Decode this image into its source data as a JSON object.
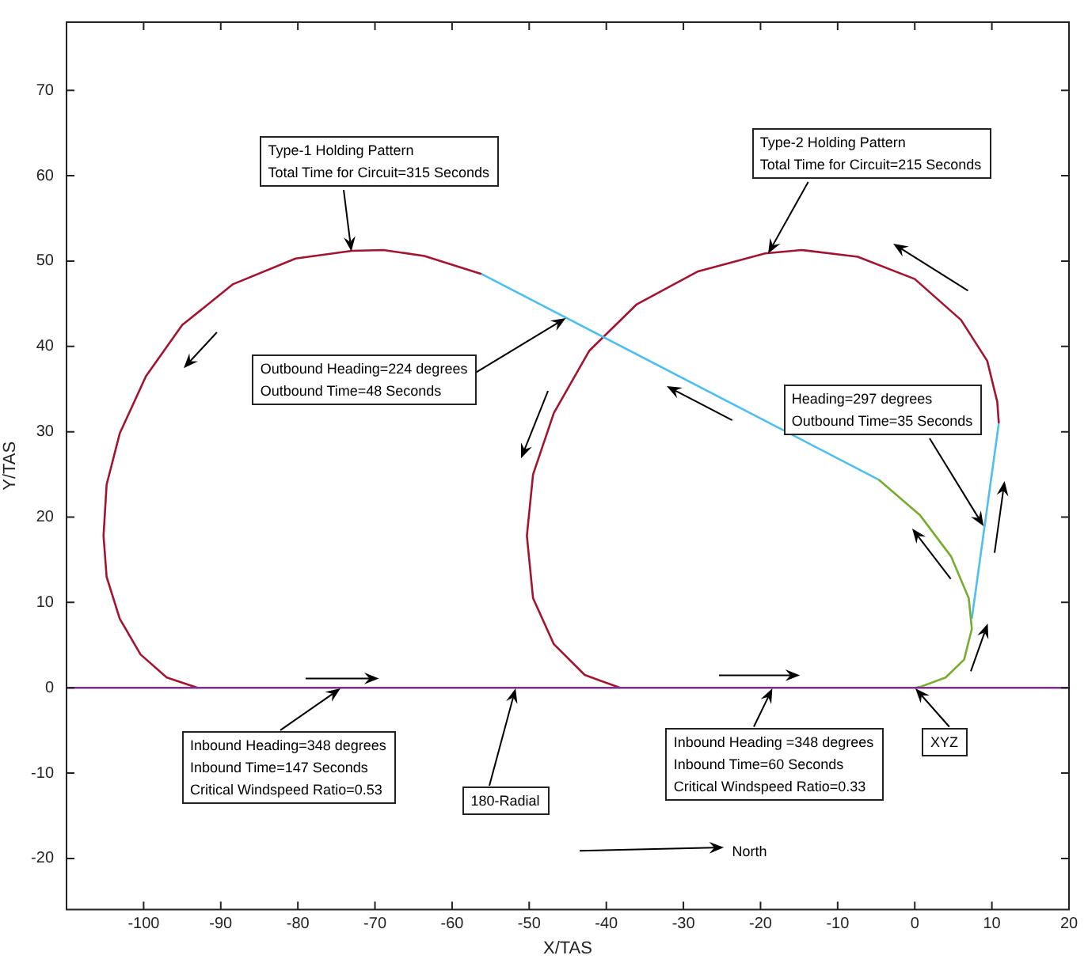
{
  "chart_data": {
    "type": "line",
    "xlabel": "X/TAS",
    "ylabel": "Y/TAS",
    "xlim": [
      -110,
      20
    ],
    "ylim": [
      -26,
      78
    ],
    "xticks": [
      -100,
      -90,
      -80,
      -70,
      -60,
      -50,
      -40,
      -30,
      -20,
      -10,
      0,
      10,
      20
    ],
    "yticks": [
      -20,
      -10,
      0,
      10,
      20,
      30,
      40,
      50,
      60,
      70
    ],
    "grid": false,
    "legend": false,
    "series": [
      {
        "color": "#7e2f8e",
        "x": [
          -110,
          20
        ],
        "values": [
          0,
          0
        ]
      },
      {
        "color": "#a2142f",
        "x": [
          -93,
          -97,
          -100.4,
          -103.1,
          -104.8,
          -105.2,
          -104.8,
          -103.1,
          -99.7,
          -95,
          -88.4,
          -80.3,
          -73,
          -68.9,
          -63.6,
          -56.2
        ],
        "values": [
          0,
          1.2,
          3.9,
          8.1,
          13,
          17.8,
          23.8,
          29.8,
          36.5,
          42.5,
          47.3,
          50.3,
          51.2,
          51.3,
          50.6,
          48.5
        ]
      },
      {
        "color": "#4dbeee",
        "x": [
          -56.2,
          -4.7
        ],
        "values": [
          48.5,
          24.4
        ]
      },
      {
        "color": "#77ac30",
        "x": [
          -4.7,
          0.7,
          4.7,
          7,
          7.4,
          6.4,
          4,
          0.7,
          0
        ],
        "values": [
          24.4,
          20.2,
          15.4,
          10.5,
          6.9,
          3.3,
          1.2,
          0.1,
          0
        ]
      },
      {
        "color": "#a2142f",
        "x": [
          -38.2,
          -42.8,
          -46.8,
          -49.5,
          -50.3,
          -49.5,
          -46.8,
          -42.2,
          -36.1,
          -28.1,
          -19.4,
          -14.7,
          -7.4,
          0,
          6,
          9.4,
          10.7,
          10.9
        ],
        "values": [
          0,
          1.5,
          5.1,
          10.5,
          17.8,
          25,
          32.2,
          39.5,
          44.9,
          48.8,
          50.9,
          51.3,
          50.5,
          47.9,
          43.1,
          38.3,
          33.5,
          31
        ]
      },
      {
        "color": "#4dbeee",
        "x": [
          10.9,
          7.4
        ],
        "values": [
          31,
          8.1
        ]
      }
    ],
    "annotations": [
      {
        "text": "Type-1 Holding Pattern\nTotal Time for Circuit=315 Seconds",
        "x": -73.1,
        "y": 51.2
      },
      {
        "text": "Type-2 Holding Pattern\nTotal Time for Circuit=215 Seconds",
        "x": -19.1,
        "y": 50.9
      },
      {
        "text": "Outbound Heading=224 degrees\nOutbound Time=48 Seconds",
        "x": -45.2,
        "y": 43.4
      },
      {
        "text": "Heading=297 degrees\nOutbound Time=35 Seconds",
        "x": 9,
        "y": 19
      },
      {
        "text": "Inbound Heading=348 degrees\nInbound Time=147 Seconds\nCritical Windspeed Ratio=0.53",
        "x": -74.5,
        "y": 0
      },
      {
        "text": "180-Radial",
        "x": -51.8,
        "y": 0
      },
      {
        "text": "Inbound Heading =348 degrees\nInbound Time=60 Seconds\nCritical Windspeed Ratio=0.33",
        "x": -18.5,
        "y": 0
      },
      {
        "text": "XYZ",
        "x": 0,
        "y": 0
      },
      "North"
    ]
  }
}
